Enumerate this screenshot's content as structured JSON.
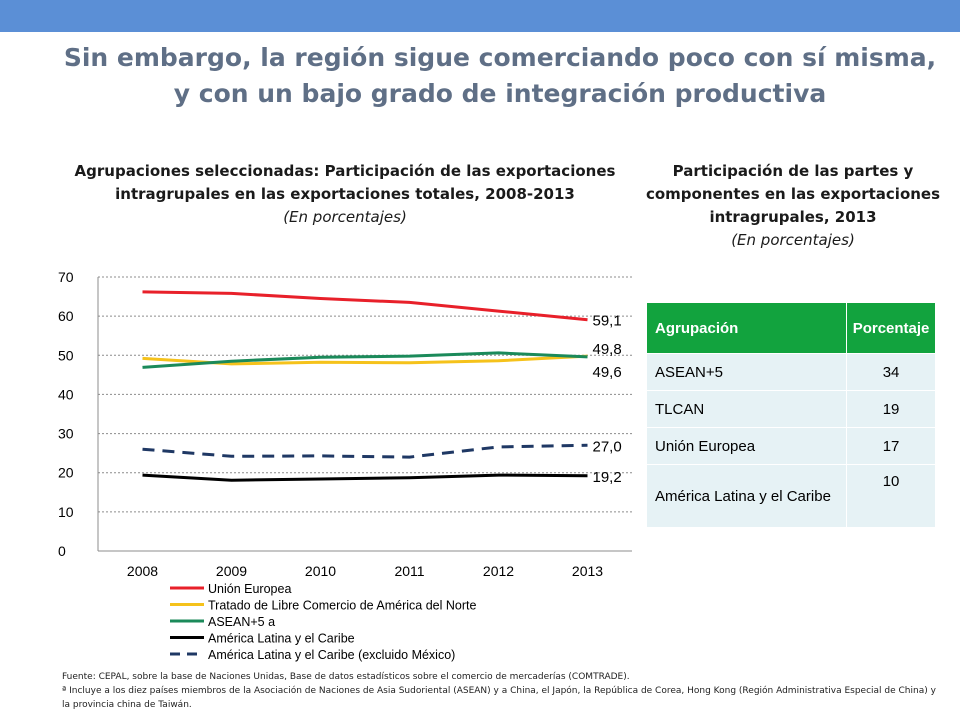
{
  "header": {
    "title": "Sin embargo, la región sigue comerciando poco con sí misma, y con un bajo grado de integración productiva"
  },
  "left_panel": {
    "title": "Agrupaciones seleccionadas: Participación de las exportaciones intragrupales en las exportaciones totales, 2008-2013",
    "subtitle": "(En porcentajes)"
  },
  "right_panel": {
    "title": "Participación de las partes y componentes en las exportaciones intragrupales, 2013",
    "subtitle": "(En porcentajes)"
  },
  "chart_data": {
    "type": "line",
    "title": "Agrupaciones seleccionadas: Participación de las exportaciones intragrupales en las exportaciones totales, 2008-2013",
    "xlabel": "",
    "ylabel": "(En porcentajes)",
    "x": [
      "2008",
      "2009",
      "2010",
      "2011",
      "2012",
      "2013"
    ],
    "ylim": [
      0,
      70
    ],
    "yticks": [
      0,
      10,
      20,
      30,
      40,
      50,
      60,
      70
    ],
    "grid": "horizontal-dashed",
    "legend_position": "bottom",
    "series": [
      {
        "name": "Unión Europea",
        "color": "#e8202a",
        "dash": "solid",
        "values": [
          66.2,
          65.8,
          64.5,
          63.5,
          61.3,
          59.1
        ],
        "end_label": "59,1"
      },
      {
        "name": "Tratado de Libre Comercio de América del Norte",
        "color": "#f5c21b",
        "dash": "solid",
        "values": [
          49.2,
          47.8,
          48.2,
          48.1,
          48.6,
          49.8
        ],
        "end_label": "49,8"
      },
      {
        "name": "ASEAN+5 a",
        "color": "#1b8a5a",
        "dash": "solid",
        "values": [
          46.9,
          48.5,
          49.5,
          49.8,
          50.6,
          49.6
        ],
        "end_label": "49,6"
      },
      {
        "name": "América Latina y el Caribe",
        "color": "#000000",
        "dash": "solid",
        "values": [
          19.4,
          18.1,
          18.4,
          18.7,
          19.4,
          19.2
        ],
        "end_label": "19,2"
      },
      {
        "name": "América Latina y el Caribe (excluido México)",
        "color": "#1f3864",
        "dash": "dashed",
        "values": [
          26.0,
          24.2,
          24.3,
          24.0,
          26.6,
          27.0
        ],
        "end_label": "27,0"
      }
    ]
  },
  "table": {
    "headers": [
      "Agrupación",
      "Porcentaje"
    ],
    "rows": [
      {
        "group": "ASEAN+5",
        "value": "34"
      },
      {
        "group": "TLCAN",
        "value": "19"
      },
      {
        "group": "Unión Europea",
        "value": "17"
      },
      {
        "group": "América Latina y el Caribe",
        "value": "10"
      }
    ]
  },
  "footer": {
    "source": "Fuente: CEPAL, sobre la base de Naciones Unidas, Base de datos estadísticos sobre el comercio de mercaderías (COMTRADE).",
    "note": "ª Incluye a los diez países miembros de la Asociación de Naciones de Asia Sudoriental (ASEAN) y a China, el Japón, la República de Corea, Hong Kong (Región Administrativa Especial de China) y la provincia china de Taiwán."
  }
}
